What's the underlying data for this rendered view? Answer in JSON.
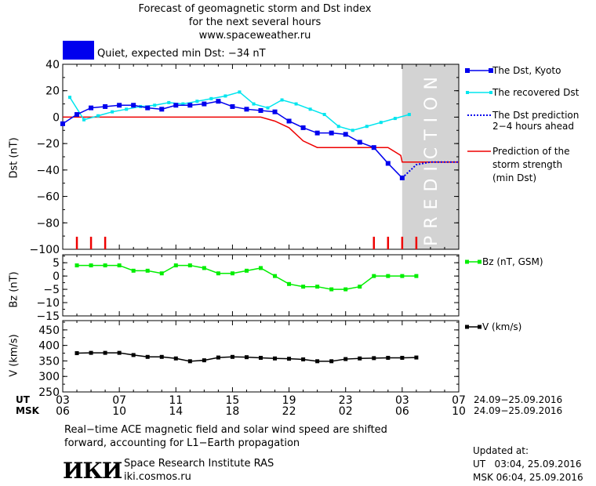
{
  "header": {
    "title_lines": [
      "Forecast of geomagnetic storm and Dst index",
      "for the next several hours",
      "www.spaceweather.ru"
    ],
    "status_color": "#0000ee",
    "status_text": "Quiet, expected min Dst: −34 nT"
  },
  "legend": {
    "dst_kyoto": "The Dst, Kyoto",
    "recovered": "The recovered Dst",
    "prediction_1": "The Dst prediction",
    "prediction_2": "2−4 hours ahead",
    "strength_1": "Prediction of the",
    "strength_2": "storm strength",
    "strength_3": "(min Dst)",
    "bz": "Bz (nT, GSM)",
    "v": "V (km/s)"
  },
  "colors": {
    "dst": "#0000ee",
    "recovered": "#00e5ee",
    "prediction": "#ee0000",
    "bz": "#00ee00",
    "v": "#000000",
    "band": "#d3d3d3"
  },
  "footer": {
    "ut_label": "UT",
    "msk_label": "MSK",
    "ut_dates": "24.09−25.09.2016",
    "msk_dates": "24.09−25.09.2016",
    "note_1": "Real−time ACE magnetic field and solar wind speed are shifted",
    "note_2": "forward, accounting for L1−Earth propagation",
    "logo": "ИКИ",
    "institute": "Space Research Institute RAS",
    "site": "iki.cosmos.ru",
    "updated_label": "Updated at:",
    "updated_ut": "UT   03:04, 25.09.2016",
    "updated_msk": "MSK 06:04, 25.09.2016"
  },
  "chart_data": [
    {
      "type": "line",
      "ylabel": "Dst (nT)",
      "ylim": [
        -100,
        40
      ],
      "yticks": [
        40,
        20,
        0,
        -20,
        -40,
        -60,
        -80,
        -100
      ],
      "xlim": [
        3,
        31
      ],
      "prediction_band": {
        "x_start": 27,
        "x_end": 31,
        "label": "PREDICTION"
      },
      "x_ticks_ut": [
        [
          3,
          "03"
        ],
        [
          7,
          "07"
        ],
        [
          11,
          "11"
        ],
        [
          15,
          "15"
        ],
        [
          19,
          "19"
        ],
        [
          23,
          "23"
        ],
        [
          27,
          "03"
        ],
        [
          31,
          "07"
        ]
      ],
      "x_ticks_msk": [
        [
          3,
          "06"
        ],
        [
          7,
          "10"
        ],
        [
          11,
          "14"
        ],
        [
          15,
          "18"
        ],
        [
          19,
          "22"
        ],
        [
          23,
          "02"
        ],
        [
          27,
          "06"
        ],
        [
          31,
          "10"
        ]
      ],
      "series": [
        {
          "name": "The Dst, Kyoto",
          "x": [
            3,
            4,
            5,
            6,
            7,
            8,
            9,
            10,
            11,
            12,
            13,
            14,
            15,
            16,
            17,
            18,
            19,
            20,
            21,
            22,
            23,
            24,
            25,
            26,
            27
          ],
          "y": [
            -5,
            2,
            7,
            8,
            9,
            9,
            7,
            6,
            9,
            9,
            10,
            12,
            8,
            6,
            5,
            4,
            -3,
            -8,
            -12,
            -12,
            -13,
            -19,
            -23,
            -35,
            -46
          ]
        },
        {
          "name": "The recovered Dst",
          "x": [
            3.5,
            4.5,
            5.5,
            6.5,
            7.5,
            8.5,
            9.5,
            10.5,
            11.5,
            12.5,
            13.5,
            14.5,
            15.5,
            16.5,
            17.5,
            18.5,
            19.5,
            20.5,
            21.5,
            22.5,
            23.5,
            24.5,
            25.5,
            26.5,
            27.5
          ],
          "y": [
            15,
            -2,
            1,
            4,
            6,
            8,
            9,
            11,
            10,
            12,
            14,
            16,
            19,
            10,
            7,
            13,
            10,
            6,
            2,
            -7,
            -10,
            -7,
            -4,
            -1,
            2
          ]
        },
        {
          "name": "The Dst prediction 2−4 hours ahead",
          "x": [
            27,
            28,
            29,
            30,
            31
          ],
          "y": [
            -46,
            -36,
            -34,
            -34,
            -34
          ]
        },
        {
          "name": "Prediction of the storm strength (min Dst)",
          "x": [
            3,
            17,
            18,
            19,
            20,
            21,
            22,
            23,
            24,
            25,
            26,
            26.9,
            27,
            31
          ],
          "y": [
            0,
            0,
            -3,
            -8,
            -18,
            -23,
            -23,
            -23,
            -23,
            -23,
            -23,
            -29,
            -34,
            -34
          ]
        }
      ],
      "event_marks_x": [
        4,
        5,
        6,
        25,
        26,
        27,
        28
      ]
    },
    {
      "type": "line",
      "ylabel": "Bz (nT)",
      "ylim": [
        -15,
        8
      ],
      "yticks": [
        5,
        0,
        -5,
        -10,
        -15
      ],
      "series": [
        {
          "name": "Bz (nT, GSM)",
          "x": [
            4,
            5,
            6,
            7,
            8,
            9,
            10,
            11,
            12,
            13,
            14,
            15,
            16,
            17,
            18,
            19,
            20,
            21,
            22,
            23,
            24,
            25,
            26,
            27,
            28
          ],
          "y": [
            4,
            4,
            4,
            4,
            2,
            2,
            1,
            4,
            4,
            3,
            1,
            1,
            2,
            3,
            0,
            -3,
            -4,
            -4,
            -5,
            -5,
            -4,
            0,
            0,
            0,
            0
          ]
        }
      ]
    },
    {
      "type": "line",
      "ylabel": "V (km/s)",
      "ylim": [
        250,
        480
      ],
      "yticks": [
        450,
        400,
        350,
        300,
        250
      ],
      "series": [
        {
          "name": "V (km/s)",
          "x": [
            4,
            5,
            6,
            7,
            8,
            9,
            10,
            11,
            12,
            13,
            14,
            15,
            16,
            17,
            18,
            19,
            20,
            21,
            22,
            23,
            24,
            25,
            26,
            27,
            28
          ],
          "y": [
            375,
            376,
            376,
            376,
            369,
            363,
            363,
            358,
            349,
            352,
            361,
            363,
            362,
            360,
            358,
            357,
            355,
            349,
            349,
            356,
            358,
            359,
            360,
            360,
            361
          ]
        }
      ]
    }
  ]
}
